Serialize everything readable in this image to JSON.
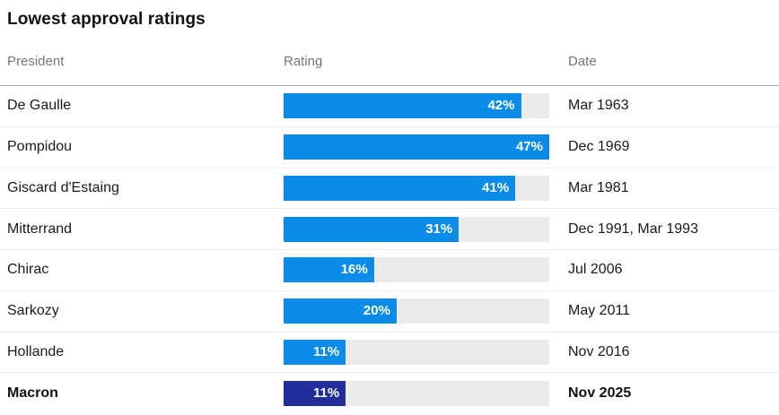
{
  "title": "Lowest approval ratings",
  "columns": {
    "president": "President",
    "rating": "Rating",
    "date": "Date"
  },
  "colors": {
    "bar": "#0b8ce8",
    "bar_highlight": "#232e9d",
    "track": "#ebebeb",
    "header_text": "#767676",
    "header_divider": "#a8a8a8",
    "row_divider": "#ececec"
  },
  "chart_data": {
    "type": "bar",
    "title": "Lowest approval ratings",
    "unit": "%",
    "xlim": [
      0,
      47
    ],
    "grid": false,
    "categories": [
      "De Gaulle",
      "Pompidou",
      "Giscard d'Estaing",
      "Mitterrand",
      "Chirac",
      "Sarkozy",
      "Hollande",
      "Macron"
    ],
    "values": [
      42,
      47,
      41,
      31,
      16,
      20,
      11,
      11
    ],
    "rows": [
      {
        "president": "De Gaulle",
        "rating": 42,
        "rating_label": "42%",
        "date": "Mar 1963",
        "highlight": false
      },
      {
        "president": "Pompidou",
        "rating": 47,
        "rating_label": "47%",
        "date": "Dec 1969",
        "highlight": false
      },
      {
        "president": "Giscard d'Estaing",
        "rating": 41,
        "rating_label": "41%",
        "date": "Mar 1981",
        "highlight": false
      },
      {
        "president": "Mitterrand",
        "rating": 31,
        "rating_label": "31%",
        "date": "Dec 1991, Mar 1993",
        "highlight": false
      },
      {
        "president": "Chirac",
        "rating": 16,
        "rating_label": "16%",
        "date": "Jul 2006",
        "highlight": false
      },
      {
        "president": "Sarkozy",
        "rating": 20,
        "rating_label": "20%",
        "date": "May 2011",
        "highlight": false
      },
      {
        "president": "Hollande",
        "rating": 11,
        "rating_label": "11%",
        "date": "Nov 2016",
        "highlight": false
      },
      {
        "president": "Macron",
        "rating": 11,
        "rating_label": "11%",
        "date": "Nov 2025",
        "highlight": true
      }
    ]
  }
}
